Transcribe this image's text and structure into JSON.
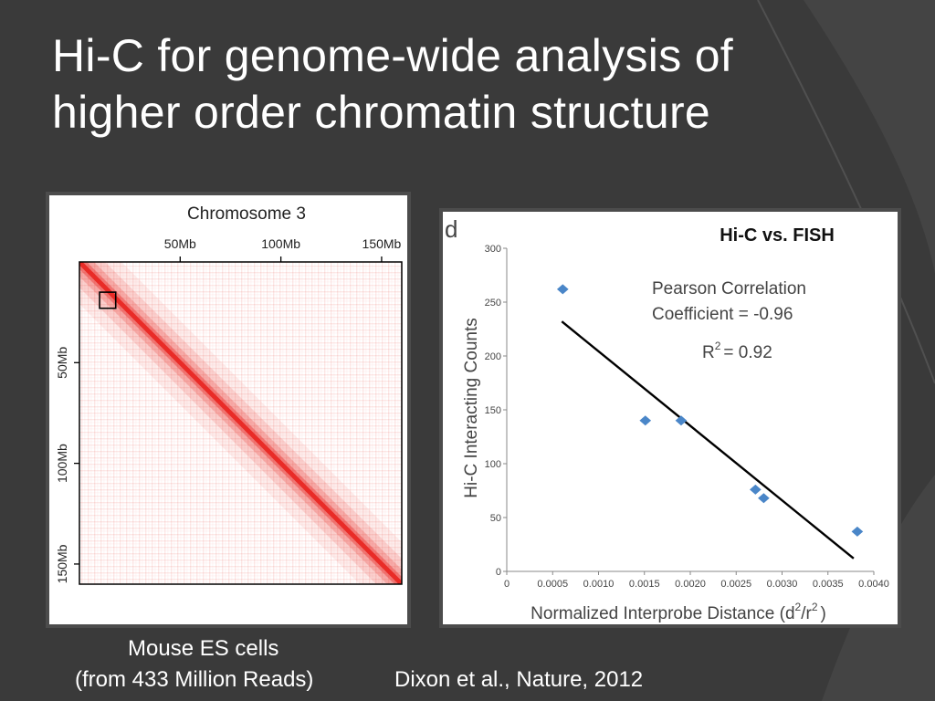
{
  "slide": {
    "title_line1": "Hi-C for genome-wide analysis of",
    "title_line2": "higher order chromatin structure",
    "caption_line1": "Mouse ES cells",
    "caption_line2": "(from 433 Million Reads)",
    "citation": "Dixon et al., Nature, 2012"
  },
  "colors": {
    "background": "#3a3a3a",
    "heatmap": "#e8231f",
    "scatter_point": "#4a86c8",
    "fit_line": "#000000"
  },
  "chart_data": [
    {
      "type": "heatmap",
      "title": "Chromosome 3",
      "top_ticks": [
        "50Mb",
        "100Mb",
        "150Mb"
      ],
      "top_tick_values": [
        50,
        100,
        150
      ],
      "left_ticks": [
        "50Mb",
        "100Mb",
        "150Mb"
      ],
      "left_tick_values": [
        50,
        100,
        150
      ],
      "range_mb": [
        0,
        160
      ],
      "highlight_region_mb": [
        [
          10,
          18
        ],
        [
          15,
          23
        ]
      ],
      "grid": false
    },
    {
      "type": "scatter",
      "panel_label": "d",
      "title": "Hi-C vs. FISH",
      "xlabel": "Normalized Interprobe Distance (d",
      "xlabel_sup1": "2",
      "xlabel_mid": "/r",
      "xlabel_sup2": "2",
      "xlabel_end": ")",
      "ylabel": "Hi-C Interacting Counts",
      "xlim": [
        0,
        0.004
      ],
      "ylim": [
        0,
        300
      ],
      "xticks": [
        "0",
        "0.0005",
        "0.0010",
        "0.0015",
        "0.0020",
        "0.0025",
        "0.0030",
        "0.0035",
        "0.0040"
      ],
      "xtick_values": [
        0,
        0.0005,
        0.001,
        0.0015,
        0.002,
        0.0025,
        0.003,
        0.0035,
        0.004
      ],
      "yticks": [
        "0",
        "50",
        "100",
        "150",
        "200",
        "250",
        "300"
      ],
      "ytick_values": [
        0,
        50,
        100,
        150,
        200,
        250,
        300
      ],
      "points": [
        {
          "x": 0.00061,
          "y": 262
        },
        {
          "x": 0.00151,
          "y": 140
        },
        {
          "x": 0.0019,
          "y": 140
        },
        {
          "x": 0.00271,
          "y": 76
        },
        {
          "x": 0.0028,
          "y": 68
        },
        {
          "x": 0.00382,
          "y": 37
        }
      ],
      "fit_line": {
        "x": [
          0.0006,
          0.00378
        ],
        "y": [
          232,
          12
        ]
      },
      "annotation_line1": "Pearson Correlation",
      "annotation_line2": "Coefficient = -0.96",
      "annotation_r2_prefix": "R",
      "annotation_r2_sup": "2",
      "annotation_r2_value": "= 0.92",
      "grid": false
    }
  ]
}
